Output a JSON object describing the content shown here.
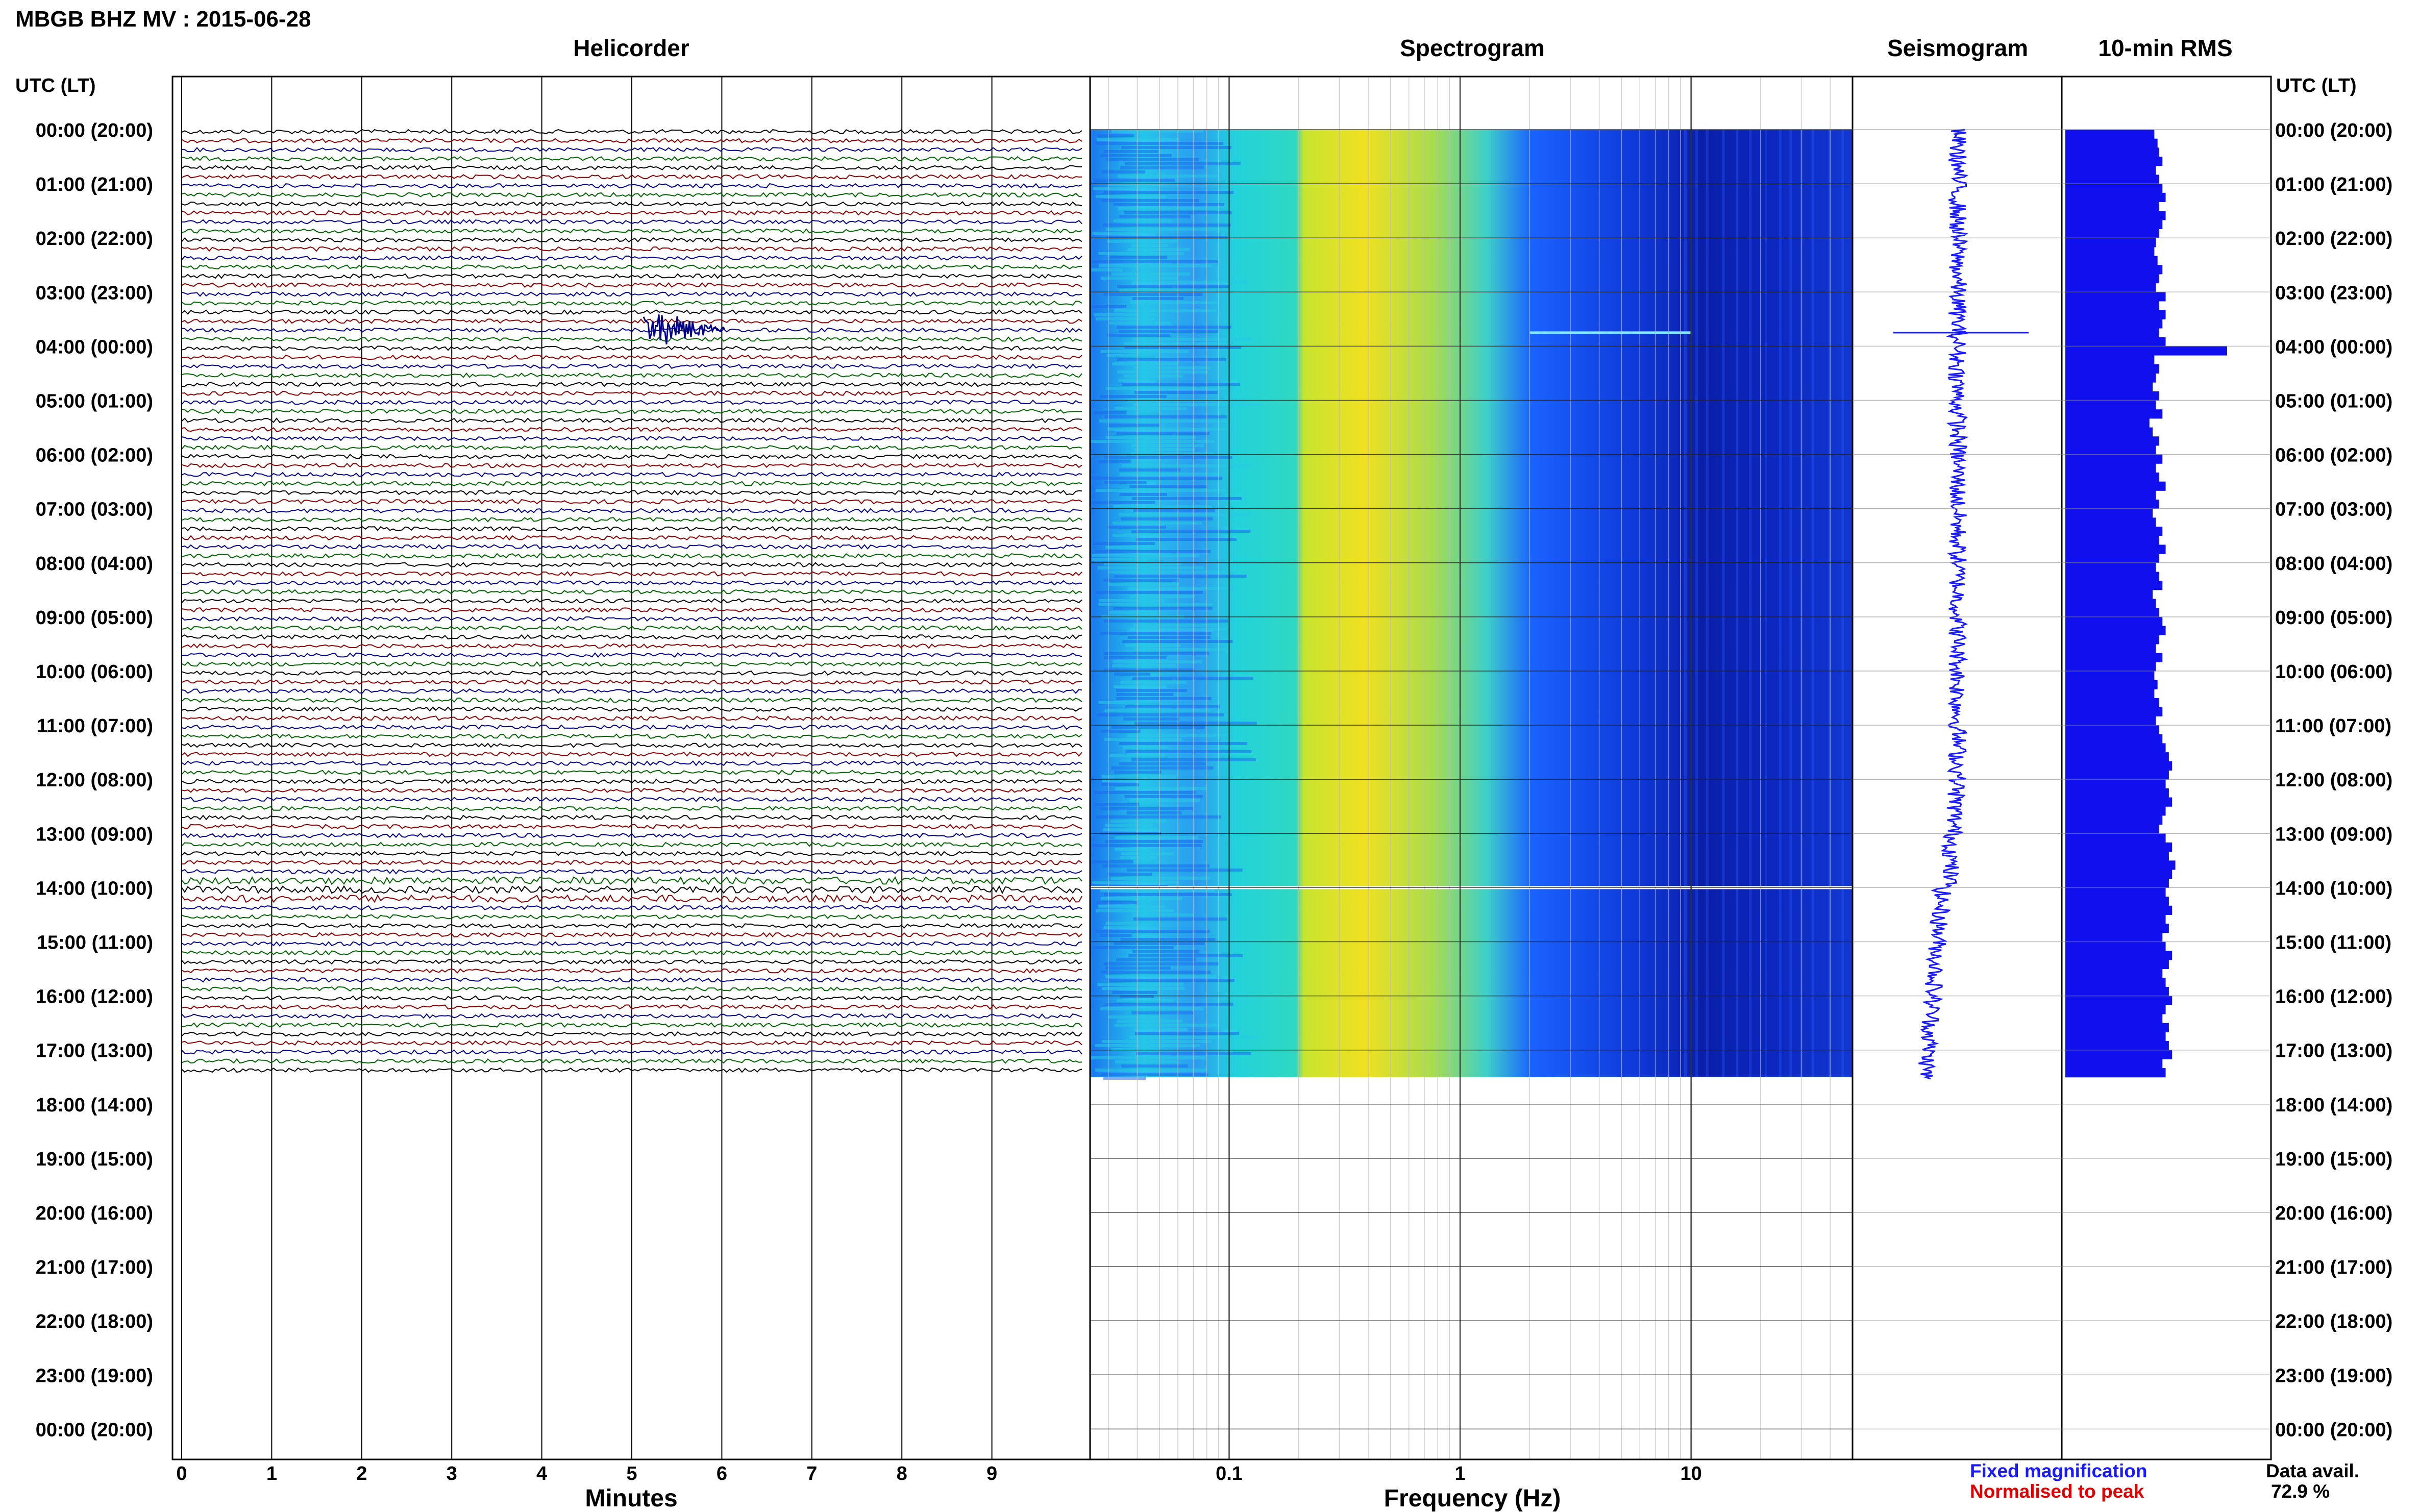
{
  "header": {
    "station_title": "MBGB BHZ MV : 2015-06-28",
    "utc_lt_left": "UTC (LT)",
    "utc_lt_right": "UTC (LT)"
  },
  "panels": {
    "helicorder": {
      "title": "Helicorder",
      "xlabel": "Minutes",
      "x_ticks": [
        "0",
        "1",
        "2",
        "3",
        "4",
        "5",
        "6",
        "7",
        "8",
        "9"
      ]
    },
    "spectrogram": {
      "title": "Spectrogram",
      "xlabel": "Frequency (Hz)",
      "x_ticks": [
        "0.1",
        "1",
        "10"
      ]
    },
    "seismogram": {
      "title": "Seismogram"
    },
    "rms": {
      "title": "10-min RMS"
    }
  },
  "time_labels": [
    "00:00 (20:00)",
    "01:00 (21:00)",
    "02:00 (22:00)",
    "03:00 (23:00)",
    "04:00 (00:00)",
    "05:00 (01:00)",
    "06:00 (02:00)",
    "07:00 (03:00)",
    "08:00 (04:00)",
    "09:00 (05:00)",
    "10:00 (06:00)",
    "11:00 (07:00)",
    "12:00 (08:00)",
    "13:00 (09:00)",
    "14:00 (10:00)",
    "15:00 (11:00)",
    "16:00 (12:00)",
    "17:00 (13:00)",
    "18:00 (14:00)",
    "19:00 (15:00)",
    "20:00 (16:00)",
    "21:00 (17:00)",
    "22:00 (18:00)",
    "23:00 (19:00)",
    "00:00 (20:00)"
  ],
  "legend": {
    "fixed_label": "Fixed magnification",
    "normalised_label": "Normalised to peak",
    "fixed_color": "#1a1aff",
    "normalised_color": "#e00000",
    "data_avail_label": "Data avail.",
    "data_avail_value": "72.9 %"
  },
  "colors": {
    "trace_cycle": [
      "#000000",
      "#8b0000",
      "#00008b",
      "#006400"
    ],
    "rms_bar": "#1010ee",
    "seismogram": "#1a1aff"
  },
  "chart_data": [
    {
      "type": "line",
      "title": "Helicorder",
      "xlabel": "Minutes",
      "xlim": [
        0,
        10
      ],
      "ylim_hours_utc": [
        0,
        24
      ],
      "trace_minutes_per_line": 10,
      "data_end_hour_utc": 17.5,
      "events": [
        {
          "hour_utc": 3.5,
          "minute": 5.3,
          "description": "local event"
        }
      ],
      "data_gap_hour_utc": 14
    },
    {
      "type": "heatmap",
      "title": "Spectrogram",
      "xlabel": "Frequency (Hz)",
      "xscale": "log",
      "xlim": [
        0.025,
        50
      ],
      "x_ticks": [
        0.1,
        1,
        10
      ],
      "ylim_hours_utc": [
        0,
        24
      ],
      "data_end_hour_utc": 17.5,
      "colormap": [
        "#00008b",
        "#1a50ff",
        "#25c0ee",
        "#dddd20"
      ],
      "dominant_band_hz": [
        0.2,
        1.5
      ]
    },
    {
      "type": "line",
      "title": "Seismogram",
      "ylim_hours_utc": [
        0,
        24
      ],
      "data_end_hour_utc": 17.5,
      "spike_hour_utc": 3.75
    },
    {
      "type": "bar",
      "title": "10-min RMS",
      "ylim_hours_utc": [
        0,
        24
      ],
      "bin_minutes": 10,
      "relative_values": [
        0.55,
        0.57,
        0.58,
        0.6,
        0.56,
        0.58,
        0.6,
        0.62,
        0.58,
        0.62,
        0.6,
        0.58,
        0.56,
        0.55,
        0.57,
        0.6,
        0.58,
        0.56,
        0.62,
        0.58,
        0.62,
        0.6,
        0.58,
        0.62,
        1.0,
        0.55,
        0.58,
        0.56,
        0.54,
        0.58,
        0.56,
        0.6,
        0.52,
        0.54,
        0.58,
        0.56,
        0.6,
        0.56,
        0.58,
        0.62,
        0.56,
        0.58,
        0.54,
        0.56,
        0.6,
        0.58,
        0.62,
        0.58,
        0.56,
        0.58,
        0.6,
        0.54,
        0.56,
        0.58,
        0.6,
        0.62,
        0.58,
        0.56,
        0.6,
        0.56,
        0.55,
        0.57,
        0.55,
        0.58,
        0.6,
        0.56,
        0.58,
        0.6,
        0.62,
        0.64,
        0.66,
        0.64,
        0.62,
        0.64,
        0.66,
        0.62,
        0.6,
        0.58,
        0.62,
        0.66,
        0.64,
        0.68,
        0.66,
        0.64,
        0.62,
        0.64,
        0.66,
        0.62,
        0.64,
        0.6,
        0.62,
        0.66,
        0.64,
        0.6,
        0.62,
        0.64,
        0.66,
        0.62,
        0.6,
        0.64,
        0.62,
        0.64,
        0.66,
        0.6,
        0.62
      ]
    }
  ]
}
